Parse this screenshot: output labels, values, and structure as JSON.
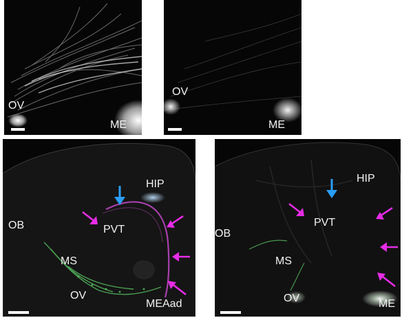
{
  "panels": {
    "top_left": {
      "labels": {
        "ov": "OV",
        "me": "ME"
      }
    },
    "top_right": {
      "labels": {
        "ov": "OV",
        "me": "ME"
      }
    },
    "bottom_left": {
      "labels": {
        "hip": "HIP",
        "pvt": "PVT",
        "ob": "OB",
        "ms": "MS",
        "ov": "OV",
        "meaad": "MEAad"
      }
    },
    "bottom_right": {
      "labels": {
        "hip": "HIP",
        "pvt": "PVT",
        "ob": "OB",
        "ms": "MS",
        "ov": "OV",
        "me": "ME"
      }
    }
  },
  "colors": {
    "magenta_arrow": "#e62ce6",
    "blue_arrow": "#2a9df4",
    "green_signal": "#5fd06a",
    "magenta_signal": "#c248c8"
  }
}
